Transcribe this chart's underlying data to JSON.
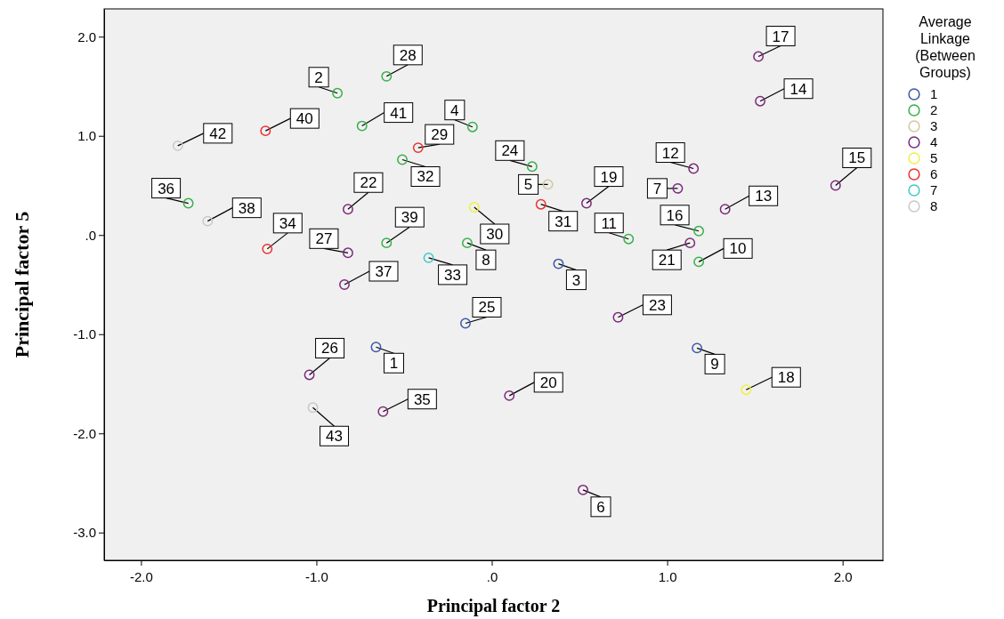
{
  "chart_data": {
    "type": "scatter",
    "xlabel": "Principal factor 2",
    "ylabel": "Principal factor 5",
    "legend_title": "Average Linkage (Between Groups)",
    "legend": "right",
    "marker": "circle",
    "xlim": [
      -2.21,
      2.23
    ],
    "ylim": [
      -3.28,
      2.28
    ],
    "xticks": [
      {
        "value": -2,
        "label": "-2.0"
      },
      {
        "value": -1,
        "label": "-1.0"
      },
      {
        "value": 0,
        "label": ".0"
      },
      {
        "value": 1,
        "label": "1.0"
      },
      {
        "value": 2,
        "label": "2.0"
      }
    ],
    "yticks": [
      {
        "value": -3,
        "label": "-3.0"
      },
      {
        "value": -2,
        "label": "-2.0"
      },
      {
        "value": -1,
        "label": "-1.0"
      },
      {
        "value": 0,
        "label": ".0"
      },
      {
        "value": 1,
        "label": "1.0"
      },
      {
        "value": 2,
        "label": "2.0"
      }
    ],
    "series": [
      {
        "name": "1",
        "color": "#3c58a8",
        "x": [
          -0.66,
          0.38,
          1.17,
          -0.15
        ],
        "values": [
          -1.13,
          -0.29,
          -1.14,
          -0.89
        ]
      },
      {
        "name": "2",
        "color": "#36b04a",
        "x": [
          -0.88,
          -0.6,
          -0.74,
          -0.11,
          -0.51,
          0.23,
          -1.73,
          -0.6,
          -0.14,
          0.78,
          1.18,
          1.18
        ],
        "values": [
          1.43,
          1.6,
          1.1,
          1.09,
          0.76,
          0.69,
          0.32,
          -0.08,
          -0.08,
          -0.04,
          0.04,
          -0.27
        ]
      },
      {
        "name": "3",
        "color": "#d2c8a0",
        "x": [
          0.32
        ],
        "values": [
          0.51
        ]
      },
      {
        "name": "4",
        "color": "#7a2a7a",
        "x": [
          1.52,
          1.53,
          1.15,
          1.06,
          1.96,
          1.33,
          0.54,
          1.13,
          -0.82,
          -0.82,
          -0.84,
          0.72,
          -1.04,
          -0.62,
          0.1,
          0.52
        ],
        "values": [
          1.8,
          1.35,
          0.67,
          0.47,
          0.5,
          0.26,
          0.32,
          -0.08,
          0.26,
          -0.18,
          -0.5,
          -0.83,
          -1.41,
          -1.78,
          -1.62,
          -2.57
        ]
      },
      {
        "name": "5",
        "color": "#f0f040",
        "x": [
          -0.1,
          1.45
        ],
        "values": [
          0.28,
          -1.56
        ]
      },
      {
        "name": "6",
        "color": "#e8322f",
        "x": [
          -1.29,
          -0.42,
          0.28,
          -1.28
        ],
        "values": [
          1.05,
          0.88,
          0.31,
          -0.14
        ]
      },
      {
        "name": "7",
        "color": "#40c8c8",
        "x": [
          -0.36
        ],
        "values": [
          -0.23
        ]
      },
      {
        "name": "8",
        "color": "#c8c8c8",
        "x": [
          -1.79,
          -1.62,
          -1.02
        ],
        "values": [
          0.9,
          0.14,
          -1.74
        ]
      }
    ],
    "annotations": [
      {
        "text": "1",
        "x": -0.66,
        "y": -1.13
      },
      {
        "text": "3",
        "x": 0.38,
        "y": -0.29
      },
      {
        "text": "9",
        "x": 1.17,
        "y": -1.14
      },
      {
        "text": "25",
        "x": -0.15,
        "y": -0.89
      },
      {
        "text": "2",
        "x": -0.88,
        "y": 1.43
      },
      {
        "text": "28",
        "x": -0.6,
        "y": 1.6
      },
      {
        "text": "41",
        "x": -0.74,
        "y": 1.1
      },
      {
        "text": "4",
        "x": -0.11,
        "y": 1.09
      },
      {
        "text": "32",
        "x": -0.51,
        "y": 0.76
      },
      {
        "text": "24",
        "x": 0.23,
        "y": 0.69
      },
      {
        "text": "36",
        "x": -1.73,
        "y": 0.32
      },
      {
        "text": "39",
        "x": -0.6,
        "y": -0.08
      },
      {
        "text": "8",
        "x": -0.14,
        "y": -0.08
      },
      {
        "text": "11",
        "x": 0.78,
        "y": -0.04
      },
      {
        "text": "16",
        "x": 1.18,
        "y": 0.04
      },
      {
        "text": "10",
        "x": 1.18,
        "y": -0.27
      },
      {
        "text": "5",
        "x": 0.32,
        "y": 0.51
      },
      {
        "text": "17",
        "x": 1.52,
        "y": 1.8
      },
      {
        "text": "14",
        "x": 1.53,
        "y": 1.35
      },
      {
        "text": "12",
        "x": 1.15,
        "y": 0.67
      },
      {
        "text": "7",
        "x": 1.06,
        "y": 0.47
      },
      {
        "text": "15",
        "x": 1.96,
        "y": 0.5
      },
      {
        "text": "13",
        "x": 1.33,
        "y": 0.26
      },
      {
        "text": "19",
        "x": 0.54,
        "y": 0.32
      },
      {
        "text": "21",
        "x": 1.13,
        "y": -0.08
      },
      {
        "text": "22",
        "x": -0.82,
        "y": 0.26
      },
      {
        "text": "27",
        "x": -0.82,
        "y": -0.18
      },
      {
        "text": "37",
        "x": -0.84,
        "y": -0.5
      },
      {
        "text": "23",
        "x": 0.72,
        "y": -0.83
      },
      {
        "text": "26",
        "x": -1.04,
        "y": -1.41
      },
      {
        "text": "35",
        "x": -0.62,
        "y": -1.78
      },
      {
        "text": "20",
        "x": 0.1,
        "y": -1.62
      },
      {
        "text": "6",
        "x": 0.52,
        "y": -2.57
      },
      {
        "text": "30",
        "x": -0.1,
        "y": 0.28
      },
      {
        "text": "18",
        "x": 1.45,
        "y": -1.56
      },
      {
        "text": "40",
        "x": -1.29,
        "y": 1.05
      },
      {
        "text": "29",
        "x": -0.42,
        "y": 0.88
      },
      {
        "text": "31",
        "x": 0.28,
        "y": 0.31
      },
      {
        "text": "34",
        "x": -1.28,
        "y": -0.14
      },
      {
        "text": "33",
        "x": -0.36,
        "y": -0.23
      },
      {
        "text": "42",
        "x": -1.79,
        "y": 0.9
      },
      {
        "text": "38",
        "x": -1.62,
        "y": 0.14
      },
      {
        "text": "43",
        "x": -1.02,
        "y": -1.74
      }
    ]
  }
}
